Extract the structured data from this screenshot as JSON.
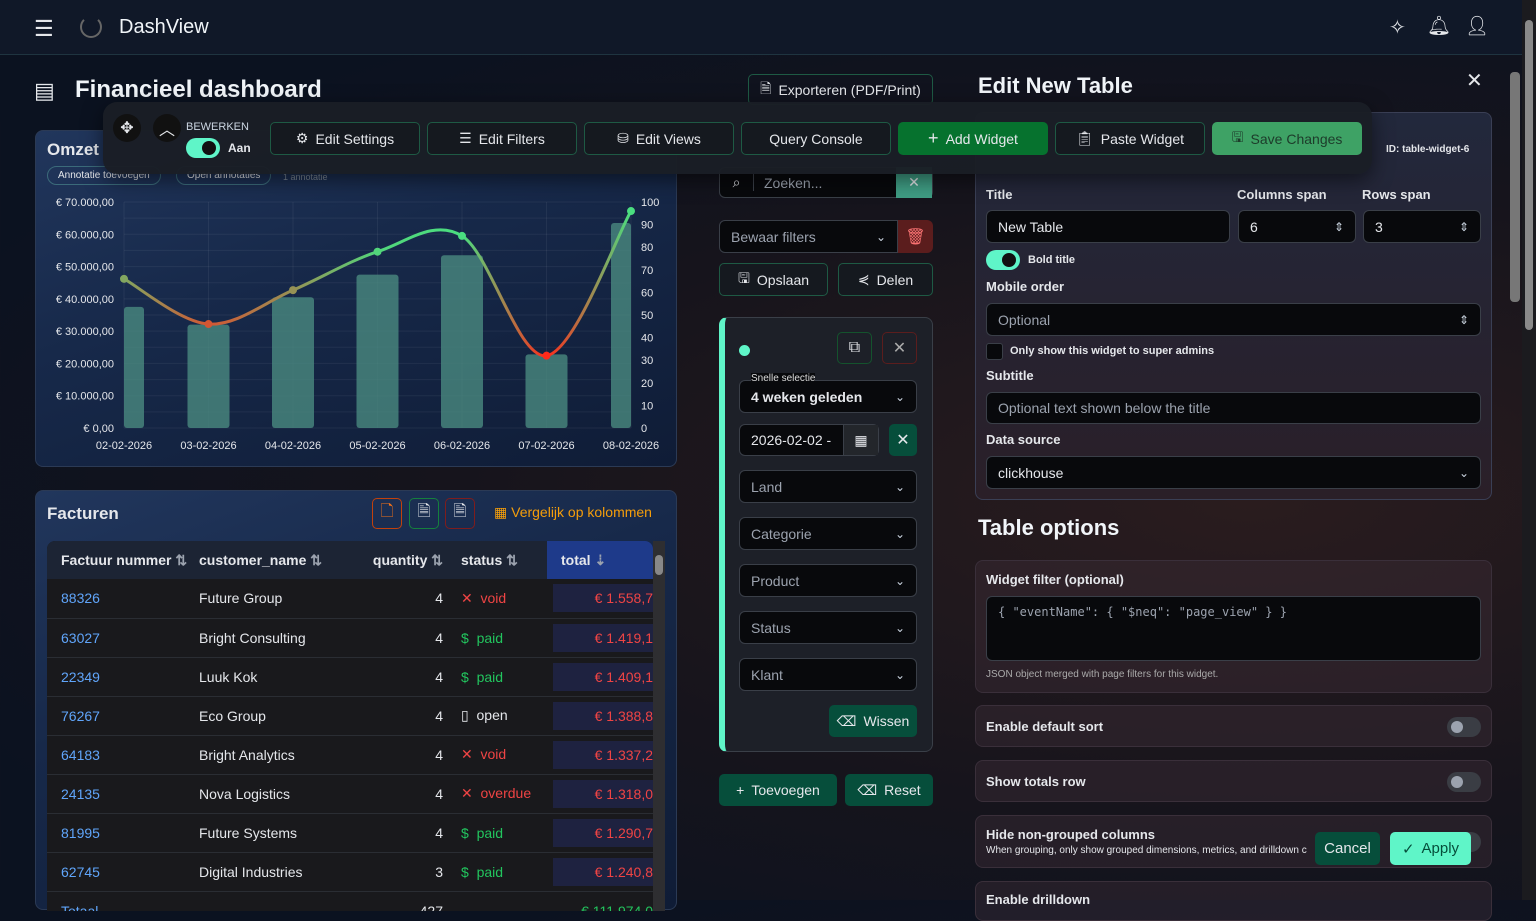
{
  "app": {
    "name": "DashView",
    "icons": [
      "menu-icon",
      "logo-icon",
      "sparkle-icon",
      "bell-icon",
      "user-icon"
    ]
  },
  "page": {
    "title": "Financieel dashboard",
    "export_label": "Exporteren (PDF/Print)"
  },
  "toolbar": {
    "edit_mode_label": "BEWERKEN",
    "edit_toggle_label": "Aan",
    "edit_on": true,
    "edit_settings": "Edit Settings",
    "edit_filters": "Edit Filters",
    "edit_views": "Edit Views",
    "query_console": "Query Console",
    "add_widget": "Add Widget",
    "paste_widget": "Paste Widget",
    "save_changes": "Save Changes"
  },
  "omzet": {
    "title": "Omzet",
    "add_annotation": "Annotatie toevoegen",
    "open_annotations": "Open annotaties",
    "annotation_count": "1 annotatie"
  },
  "chart_data": {
    "type": "bar+line",
    "categories": [
      "02-02-2026",
      "03-02-2026",
      "04-02-2026",
      "05-02-2026",
      "06-02-2026",
      "07-02-2026",
      "08-02-2026"
    ],
    "series": [
      {
        "type": "bar",
        "axis": "left",
        "values": [
          37500,
          32000,
          40500,
          47500,
          53500,
          22800,
          63500
        ]
      },
      {
        "type": "line",
        "axis": "right",
        "values": [
          66,
          46,
          61,
          78,
          85,
          32,
          96
        ]
      }
    ],
    "left_ticks": [
      "€ 0,00",
      "€ 10.000,00",
      "€ 20.000,00",
      "€ 30.000,00",
      "€ 40.000,00",
      "€ 50.000,00",
      "€ 60.000,00",
      "€ 70.000,00"
    ],
    "left_range": [
      0,
      70000
    ],
    "right_ticks": [
      "0",
      "10",
      "20",
      "30",
      "40",
      "50",
      "60",
      "70",
      "80",
      "90",
      "100"
    ],
    "right_range": [
      0,
      100
    ],
    "grid": true,
    "bar_color": "#4a8a80",
    "line_low_color": "#ff2a1a",
    "line_high_color": "#4ade80"
  },
  "facturen": {
    "title": "Facturen",
    "compare_label": "Vergelijk op kolommen",
    "columns": [
      "Factuur nummer",
      "customer_name",
      "quantity",
      "status",
      "total"
    ],
    "rows": [
      {
        "id": "88326",
        "customer": "Future Group",
        "qty": "4",
        "status": "void",
        "total": "€ 1.558,7"
      },
      {
        "id": "63027",
        "customer": "Bright Consulting",
        "qty": "4",
        "status": "paid",
        "total": "€ 1.419,1"
      },
      {
        "id": "22349",
        "customer": "Luuk Kok",
        "qty": "4",
        "status": "paid",
        "total": "€ 1.409,1"
      },
      {
        "id": "76267",
        "customer": "Eco Group",
        "qty": "4",
        "status": "open",
        "total": "€ 1.388,8"
      },
      {
        "id": "64183",
        "customer": "Bright Analytics",
        "qty": "4",
        "status": "void",
        "total": "€ 1.337,2"
      },
      {
        "id": "24135",
        "customer": "Nova Logistics",
        "qty": "4",
        "status": "overdue",
        "total": "€ 1.318,0"
      },
      {
        "id": "81995",
        "customer": "Future Systems",
        "qty": "4",
        "status": "paid",
        "total": "€ 1.290,7"
      },
      {
        "id": "62745",
        "customer": "Digital Industries",
        "qty": "3",
        "status": "paid",
        "total": "€ 1.240,8"
      }
    ],
    "totals": {
      "label": "Totaal",
      "qty": "427",
      "total": "€ 111.974,0"
    }
  },
  "filters": {
    "search_placeholder": "Zoeken...",
    "saved_filters": "Bewaar filters",
    "save": "Opslaan",
    "share": "Delen",
    "quick_select_label": "Snelle selectie",
    "quick_select": "4 weken geleden",
    "date": "2026-02-02 -",
    "selects": [
      "Land",
      "Categorie",
      "Product",
      "Status",
      "Klant"
    ],
    "clear": "Wissen",
    "add": "Toevoegen",
    "reset": "Reset"
  },
  "editor": {
    "title": "Edit New Table",
    "widget_id": "ID: table-widget-6",
    "title_label": "Title",
    "title_value": "New Table",
    "columns_span_label": "Columns span",
    "columns_span": "6",
    "rows_span_label": "Rows span",
    "rows_span": "3",
    "bold_title": "Bold title",
    "bold_on": true,
    "mobile_order_label": "Mobile order",
    "mobile_order_placeholder": "Optional",
    "super_admin_label": "Only show this widget to super admins",
    "subtitle_label": "Subtitle",
    "subtitle_placeholder": "Optional text shown below the title",
    "data_source_label": "Data source",
    "data_source": "clickhouse",
    "table_options_title": "Table options",
    "widget_filter_label": "Widget filter (optional)",
    "widget_filter_placeholder": "{ \"eventName\": { \"$neq\": \"page_view\" } }",
    "widget_filter_help": "JSON object merged with page filters for this widget.",
    "default_sort": "Enable default sort",
    "totals_row": "Show totals row",
    "hide_non_grouped": "Hide non-grouped columns",
    "hide_non_grouped_help": "When grouping, only show grouped dimensions, metrics, and drilldown c",
    "enable_drilldown": "Enable drilldown",
    "cancel": "Cancel",
    "apply": "Apply"
  }
}
